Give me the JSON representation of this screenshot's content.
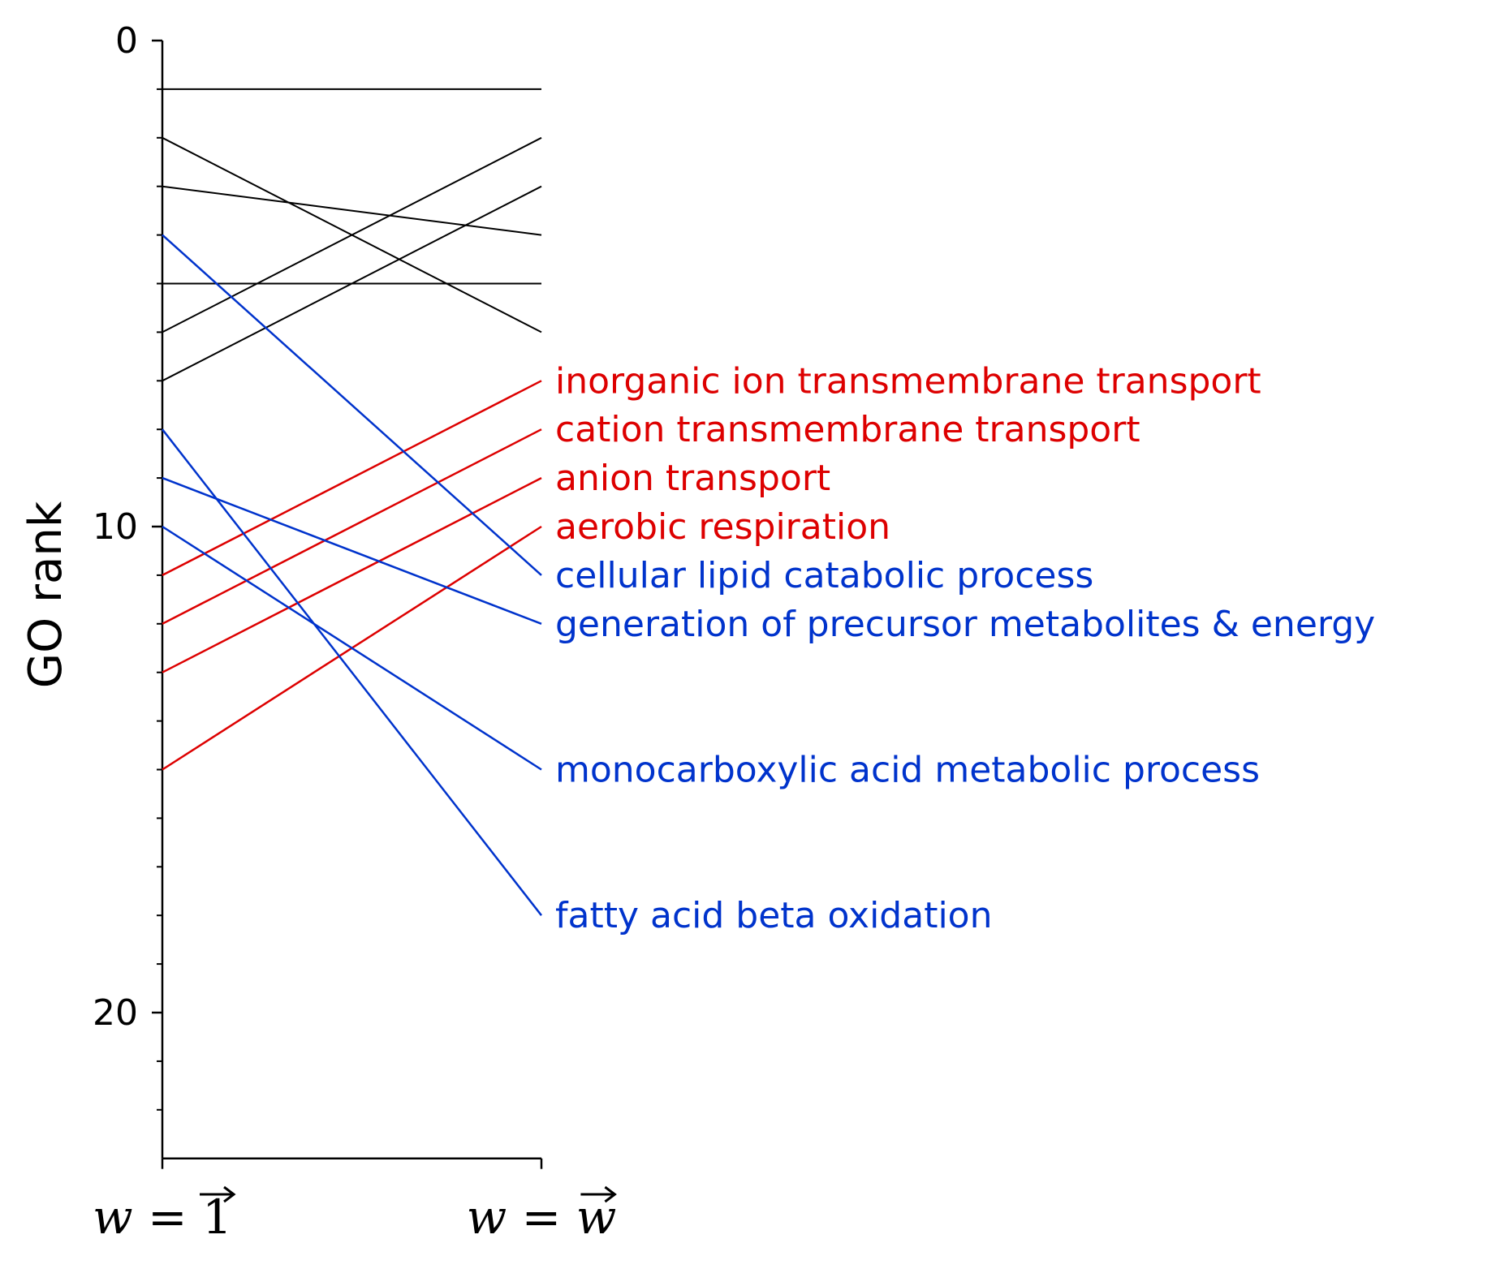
{
  "chart_data": {
    "type": "line",
    "title": "",
    "ylabel": "GO rank",
    "xlabel": "",
    "x_categories": [
      {
        "lhs": "w",
        "eq": " = ",
        "rhs": "1",
        "rhs_vector": true,
        "rhs_italic": false
      },
      {
        "lhs": "w",
        "eq": " = ",
        "rhs": "w",
        "rhs_vector": true,
        "rhs_italic": true
      }
    ],
    "ylim": [
      23,
      0
    ],
    "y_major_ticks": [
      0,
      10,
      20
    ],
    "y_minor_ticks": [
      1,
      2,
      3,
      4,
      5,
      6,
      7,
      8,
      9,
      11,
      12,
      13,
      14,
      15,
      16,
      17,
      18,
      19,
      21,
      22
    ],
    "colors": {
      "neutral": "#000000",
      "up": "#dd0000",
      "down": "#0033cc"
    },
    "series": [
      {
        "name": "",
        "color_key": "neutral",
        "values": [
          1,
          1
        ]
      },
      {
        "name": "",
        "color_key": "neutral",
        "values": [
          2,
          6
        ]
      },
      {
        "name": "",
        "color_key": "neutral",
        "values": [
          3,
          4
        ]
      },
      {
        "name": "",
        "color_key": "neutral",
        "values": [
          5,
          5
        ]
      },
      {
        "name": "",
        "color_key": "neutral",
        "values": [
          6,
          2
        ]
      },
      {
        "name": "",
        "color_key": "neutral",
        "values": [
          7,
          3
        ]
      },
      {
        "name": "inorganic ion transmembrane transport",
        "color_key": "up",
        "values": [
          11,
          7
        ]
      },
      {
        "name": "cation transmembrane transport",
        "color_key": "up",
        "values": [
          12,
          8
        ]
      },
      {
        "name": "anion transport",
        "color_key": "up",
        "values": [
          13,
          9
        ]
      },
      {
        "name": "aerobic respiration",
        "color_key": "up",
        "values": [
          15,
          10
        ]
      },
      {
        "name": "cellular lipid catabolic process",
        "color_key": "down",
        "values": [
          4,
          11
        ]
      },
      {
        "name": "generation of precursor metabolites & energy",
        "color_key": "down",
        "values": [
          9,
          12
        ]
      },
      {
        "name": "monocarboxylic acid metabolic process",
        "color_key": "down",
        "values": [
          10,
          15
        ]
      },
      {
        "name": "fatty acid beta oxidation",
        "color_key": "down",
        "values": [
          8,
          18
        ]
      }
    ]
  }
}
